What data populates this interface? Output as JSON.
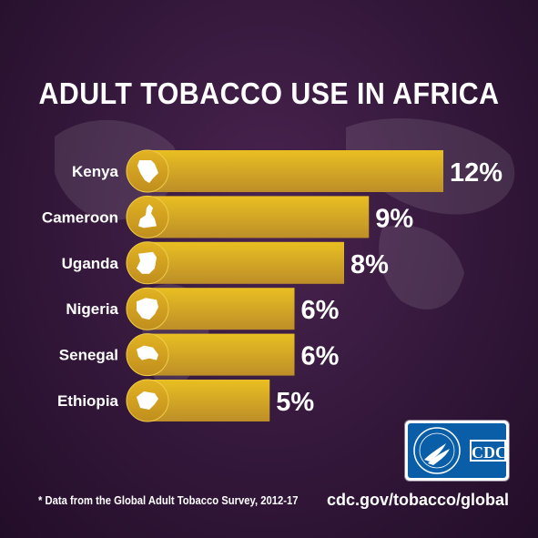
{
  "title": "ADULT TOBACCO USE IN AFRICA",
  "chart_data": {
    "type": "bar",
    "orientation": "horizontal",
    "categories": [
      "Kenya",
      "Cameroon",
      "Uganda",
      "Nigeria",
      "Senegal",
      "Ethiopia"
    ],
    "values": [
      12,
      9,
      8,
      6,
      6,
      5
    ],
    "value_labels": [
      "12%",
      "9%",
      "8%",
      "6%",
      "6%",
      "5%"
    ],
    "unit": "%",
    "icons": [
      "kenya-map-icon",
      "cameroon-map-icon",
      "uganda-map-icon",
      "nigeria-map-icon",
      "senegal-map-icon",
      "ethiopia-map-icon"
    ],
    "grid": false,
    "legend": "none"
  },
  "footnote": "* Data from the Global Adult Tobacco Survey, 2012-17",
  "url": "cdc.gov/tobacco/global",
  "logo": {
    "text": "CDC"
  },
  "colors": {
    "bar_top": "#e9bf22",
    "bar_bottom": "#bd8e28",
    "circle": "#cfa01e",
    "background": "#33173a",
    "text": "#ffffff"
  }
}
